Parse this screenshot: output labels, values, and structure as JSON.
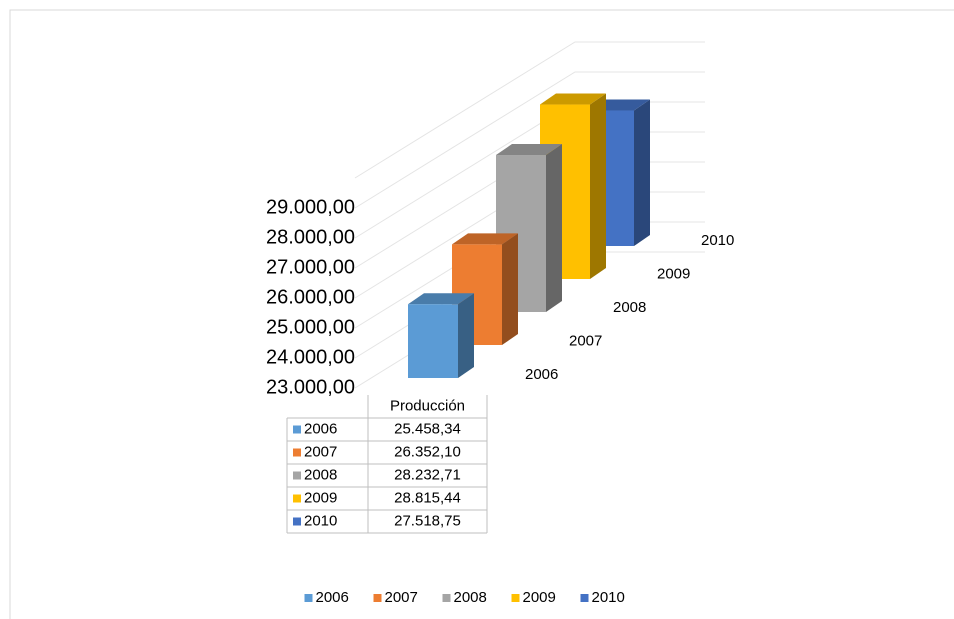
{
  "chart_data": {
    "type": "bar3d",
    "categories": [
      "Producción"
    ],
    "series": [
      {
        "name": "2006",
        "color": "#5b9bd5",
        "values": [
          25458.34
        ],
        "value_labels": [
          "25.458,34"
        ]
      },
      {
        "name": "2007",
        "color": "#ed7d31",
        "values": [
          26352.1
        ],
        "value_labels": [
          "26.352,10"
        ]
      },
      {
        "name": "2008",
        "color": "#a5a5a5",
        "values": [
          28232.71
        ],
        "value_labels": [
          "28.232,71"
        ]
      },
      {
        "name": "2009",
        "color": "#ffc000",
        "values": [
          28815.44
        ],
        "value_labels": [
          "28.815,44"
        ]
      },
      {
        "name": "2010",
        "color": "#4472c4",
        "values": [
          27518.75
        ],
        "value_labels": [
          "27.518,75"
        ]
      }
    ],
    "ylim": [
      23000,
      30000
    ],
    "yticks": [
      {
        "value": 23000,
        "label": "23.000,00"
      },
      {
        "value": 24000,
        "label": "24.000,00"
      },
      {
        "value": 25000,
        "label": "25.000,00"
      },
      {
        "value": 26000,
        "label": "26.000,00"
      },
      {
        "value": 27000,
        "label": "27.000,00"
      },
      {
        "value": 28000,
        "label": "28.000,00"
      },
      {
        "value": 29000,
        "label": "29.000,00"
      }
    ],
    "grid": true,
    "legend": "bottom",
    "data_table": true
  }
}
